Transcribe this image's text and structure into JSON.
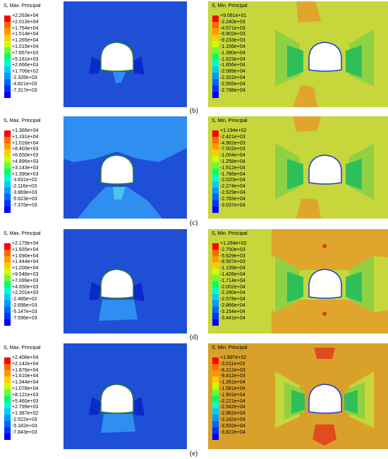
{
  "colors": {
    "legend": [
      "#ff0000",
      "#ff6600",
      "#ff9900",
      "#ffcc00",
      "#ccff00",
      "#66ff33",
      "#00ff66",
      "#00ffcc",
      "#00ccff",
      "#0099ff",
      "#0066ff",
      "#0033ff",
      "#0000ff"
    ],
    "max_blue": "#1e4fd6",
    "min_field": "#c6d63b"
  },
  "captions": [
    "(b)",
    "(c)",
    "(d)",
    "(e)"
  ],
  "rows": [
    {
      "left": {
        "title": "S, Max. Principal",
        "values": [
          "+2.263e+04",
          "+2.013e+04",
          "+1.764e+04",
          "+1.514e+04",
          "+1.265e+04",
          "+1.015e+04",
          "+7.657e+03",
          "+5.161e+03",
          "+2.666e+03",
          "+1.700e+02",
          "-2.326e+03",
          "-4.821e+03",
          "-7.317e+03"
        ]
      },
      "right": {
        "title": "S, Min. Principal",
        "values": [
          "+9.061e+01",
          "-2.240e+03",
          "-4.571e+03",
          "-6.902e+03",
          "-9.233e+03",
          "-1.156e+04",
          "-1.390e+04",
          "-1.623e+04",
          "-1.856e+04",
          "-2.089e+04",
          "-2.322e+04",
          "-2.555e+04",
          "-2.788e+04"
        ]
      }
    },
    {
      "left": {
        "title": "S, Max. Principal",
        "values": [
          "+1.366e+04",
          "+1.191e+04",
          "+1.016e+04",
          "+8.403e+03",
          "+6.650e+03",
          "+4.896e+03",
          "+3.143e+03",
          "+1.390e+03",
          "-3.631e+02",
          "-2.116e+03",
          "-3.869e+03",
          "-5.623e+03",
          "-7.376e+03"
        ]
      },
      "right": {
        "title": "S, Min. Principal",
        "values": [
          "+1.194e+02",
          "-2.421e+03",
          "-4.962e+03",
          "-7.502e+03",
          "-1.004e+04",
          "-1.258e+04",
          "-1.512e+04",
          "-1.766e+04",
          "-2.020e+04",
          "-2.274e+04",
          "-2.529e+04",
          "-2.783e+04",
          "-3.037e+04"
        ]
      }
    },
    {
      "left": {
        "title": "S, Max. Principal",
        "values": [
          "+2.179e+04",
          "+1.935e+04",
          "+1.690e+04",
          "+1.444e+04",
          "+1.200e+04",
          "+9.548e+03",
          "+7.099e+03",
          "+4.650e+03",
          "+2.201e+03",
          "-2.485e+02",
          "-2.698e+03",
          "-5.147e+03",
          "-7.596e+03"
        ]
      },
      "right": {
        "title": "S, Min. Principal",
        "values": [
          "+1.284e+02",
          "-2.750e+03",
          "-5.629e+03",
          "-8.507e+03",
          "-1.139e+04",
          "-1.426e+04",
          "-1.714e+04",
          "-2.002e+04",
          "-2.290e+04",
          "-2.578e+04",
          "-2.866e+04",
          "-3.154e+04",
          "-3.441e+04"
        ]
      }
    },
    {
      "left": {
        "title": "S, Max. Principal",
        "values": [
          "+2.408e+04",
          "+2.142e+04",
          "+1.876e+04",
          "+1.610e+04",
          "+1.344e+04",
          "+1.078e+04",
          "+8.121e+03",
          "+5.460e+03",
          "+2.799e+03",
          "+1.387e+02",
          "-2.522e+03",
          "-5.182e+03",
          "-7.843e+03"
        ]
      },
      "right": {
        "title": "S, Min. Principal",
        "values": [
          "+1.897e+02",
          "-3.011e+03",
          "-6.212e+03",
          "-9.412e+03",
          "-1.261e+04",
          "-1.581e+04",
          "-1.901e+04",
          "-2.221e+04",
          "-2.542e+04",
          "-2.862e+04",
          "-3.182e+04",
          "-3.502e+04",
          "-3.822e+04"
        ]
      }
    }
  ]
}
